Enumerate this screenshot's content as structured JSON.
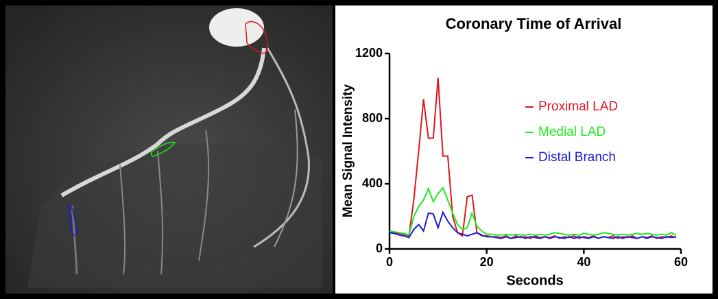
{
  "chart_data": {
    "type": "line",
    "title": "Coronary Time of Arrival",
    "x_label": "Seconds",
    "y_label": "Mean  Signal Intensity",
    "x": [
      0,
      1,
      2,
      3,
      4,
      5,
      6,
      7,
      8,
      9,
      10,
      11,
      12,
      13,
      14,
      15,
      16,
      17,
      18,
      19,
      20,
      21,
      22,
      23,
      24,
      25,
      26,
      27,
      28,
      29,
      30,
      31,
      32,
      33,
      34,
      35,
      36,
      37,
      38,
      39,
      40,
      41,
      42,
      43,
      44,
      45,
      46,
      47,
      48,
      49,
      50,
      51,
      52,
      53,
      54,
      55,
      56,
      57,
      58,
      59
    ],
    "xlim": [
      0,
      60
    ],
    "xticks": [
      0,
      20,
      40,
      60
    ],
    "ylim": [
      0,
      1200
    ],
    "yticks": [
      0,
      400,
      800,
      1200
    ],
    "series": [
      {
        "name": "Proximal LAD",
        "color": "#e0161c",
        "values": [
          110,
          100,
          95,
          90,
          80,
          300,
          600,
          920,
          680,
          680,
          1050,
          570,
          570,
          200,
          100,
          80,
          320,
          330,
          100,
          80,
          80,
          75,
          75,
          70,
          80,
          65,
          80,
          70,
          75,
          65,
          80,
          70,
          75,
          70,
          80,
          65,
          75,
          70,
          80,
          65,
          75,
          70,
          80,
          65,
          75,
          70,
          80,
          65,
          75,
          70,
          80,
          65,
          75,
          70,
          80,
          65,
          75,
          70,
          80,
          70
        ]
      },
      {
        "name": "Medial LAD",
        "color": "#1ee81e",
        "values": [
          110,
          105,
          100,
          95,
          85,
          200,
          260,
          300,
          370,
          290,
          340,
          375,
          300,
          220,
          150,
          120,
          130,
          220,
          140,
          110,
          90,
          90,
          85,
          85,
          90,
          85,
          90,
          85,
          85,
          90,
          85,
          90,
          85,
          90,
          100,
          95,
          90,
          85,
          90,
          85,
          95,
          90,
          85,
          90,
          100,
          95,
          90,
          85,
          90,
          85,
          90,
          95,
          90,
          95,
          90,
          85,
          90,
          85,
          100,
          85
        ]
      },
      {
        "name": "Distal Branch",
        "color": "#1b1bd6",
        "values": [
          100,
          95,
          85,
          80,
          70,
          120,
          150,
          110,
          220,
          215,
          130,
          225,
          170,
          130,
          100,
          90,
          80,
          90,
          100,
          85,
          75,
          75,
          70,
          65,
          75,
          65,
          70,
          75,
          65,
          75,
          70,
          65,
          75,
          65,
          75,
          70,
          65,
          75,
          65,
          75,
          70,
          65,
          75,
          65,
          75,
          70,
          65,
          75,
          65,
          75,
          70,
          65,
          75,
          65,
          75,
          70,
          65,
          75,
          70,
          75
        ]
      }
    ]
  }
}
